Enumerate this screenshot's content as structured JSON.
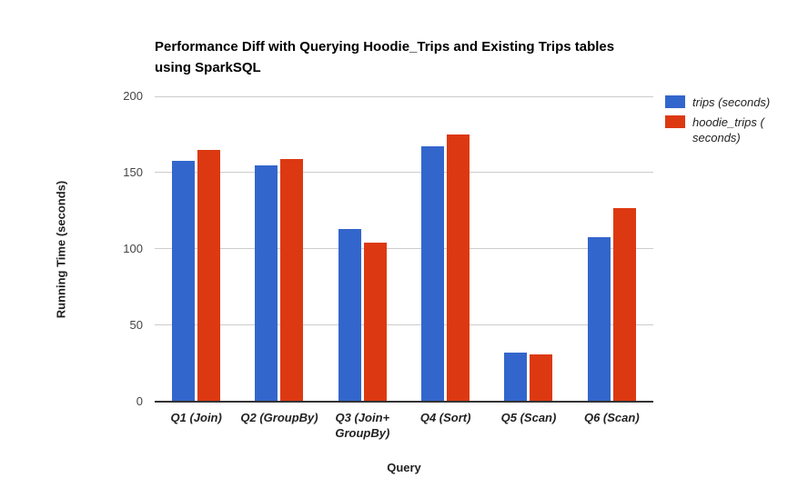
{
  "chart_data": {
    "type": "bar",
    "title": "Performance Diff with Querying Hoodie_Trips and Existing Trips tables\nusing SparkSQL",
    "categories": [
      "Q1 (Join)",
      "Q2 (GroupBy)",
      "Q3 (Join+\nGroupBy)",
      "Q4 (Sort)",
      "Q5 (Scan)",
      "Q6 (Scan)"
    ],
    "series": [
      {
        "name": "trips (seconds)",
        "color": "#3366CC",
        "values": [
          158,
          155,
          113,
          167,
          32,
          108
        ]
      },
      {
        "name": "hoodie_trips ( seconds)",
        "color": "#DC3912",
        "values": [
          165,
          159,
          104,
          175,
          31,
          127
        ]
      }
    ],
    "xlabel": "Query",
    "ylabel": "Running Time (seconds)",
    "ylim": [
      0,
      200
    ],
    "yticks": [
      0,
      50,
      100,
      150,
      200
    ],
    "grid": true,
    "legend_position": "right",
    "colors": {
      "background": "#ffffff",
      "title": "#000000",
      "gridline": "#cccccc",
      "axis_line": "#333333",
      "tick_label": "#444444",
      "category_label": "#222222"
    }
  }
}
